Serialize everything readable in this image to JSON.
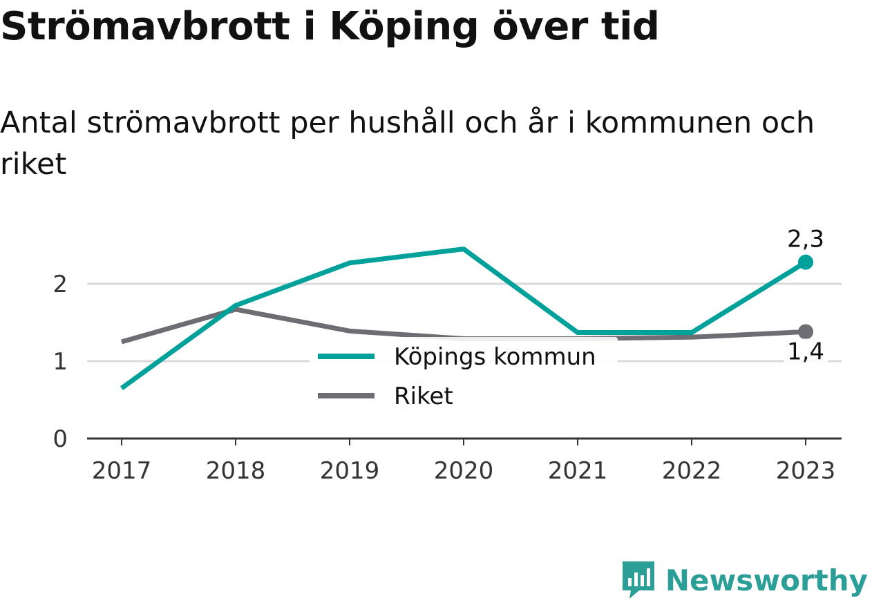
{
  "title": "Strömavbrott i Köping över tid",
  "subtitle": "Antal strömavbrott per hushåll och år i kommunen och riket",
  "brand": "Newsworthy",
  "colors": {
    "kommun": "#00a19a",
    "riket": "#6e6d73",
    "grid": "#d9d9d9",
    "axis": "#333333",
    "brand": "#2b9e97"
  },
  "chart_data": {
    "type": "line",
    "x": [
      "2017",
      "2018",
      "2019",
      "2020",
      "2021",
      "2022",
      "2023"
    ],
    "yticks": [
      "0",
      "1",
      "2"
    ],
    "ylim": [
      0,
      2.6
    ],
    "series": [
      {
        "name": "Köpings kommun",
        "color": "#00a19a",
        "values": [
          0.65,
          1.72,
          2.27,
          2.45,
          1.37,
          1.37,
          2.28
        ],
        "end_label": "2,3"
      },
      {
        "name": "Riket",
        "color": "#6e6d73",
        "values": [
          1.25,
          1.67,
          1.39,
          1.29,
          1.29,
          1.31,
          1.38
        ],
        "end_label": "1,4"
      }
    ],
    "legend_position": "center"
  }
}
